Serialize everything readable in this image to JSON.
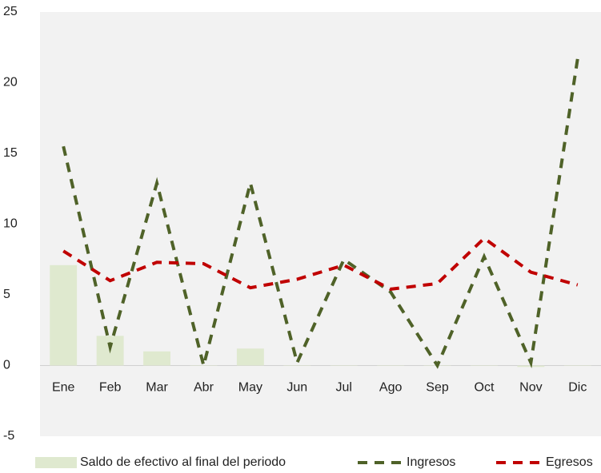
{
  "chart_data": {
    "type": "combo",
    "categories": [
      "Ene",
      "Feb",
      "Mar",
      "Abr",
      "May",
      "Jun",
      "Jul",
      "Ago",
      "Sep",
      "Oct",
      "Nov",
      "Dic"
    ],
    "series": [
      {
        "name": "Saldo de efectivo al final del periodo",
        "type": "bar",
        "color": "#dfe9cf",
        "values": [
          7.1,
          2.1,
          1.0,
          0,
          1.2,
          0,
          0,
          0,
          0,
          0,
          -0.1,
          0
        ]
      },
      {
        "name": "Ingresos",
        "type": "line",
        "color": "#4f6228",
        "dashed": true,
        "values": [
          15.5,
          1.3,
          12.9,
          0,
          12.9,
          0.2,
          7.5,
          5.2,
          0,
          7.7,
          0.2,
          21.7
        ]
      },
      {
        "name": "Egresos",
        "type": "line",
        "color": "#c00000",
        "dashed": true,
        "values": [
          8.1,
          6.0,
          7.3,
          7.2,
          5.5,
          6.1,
          7.1,
          5.4,
          5.8,
          9.0,
          6.6,
          5.7
        ]
      }
    ],
    "ylim": [
      -5,
      25
    ],
    "yticks": [
      -5,
      0,
      5,
      10,
      15,
      20,
      25
    ],
    "grid": false,
    "legend": "bottom"
  }
}
